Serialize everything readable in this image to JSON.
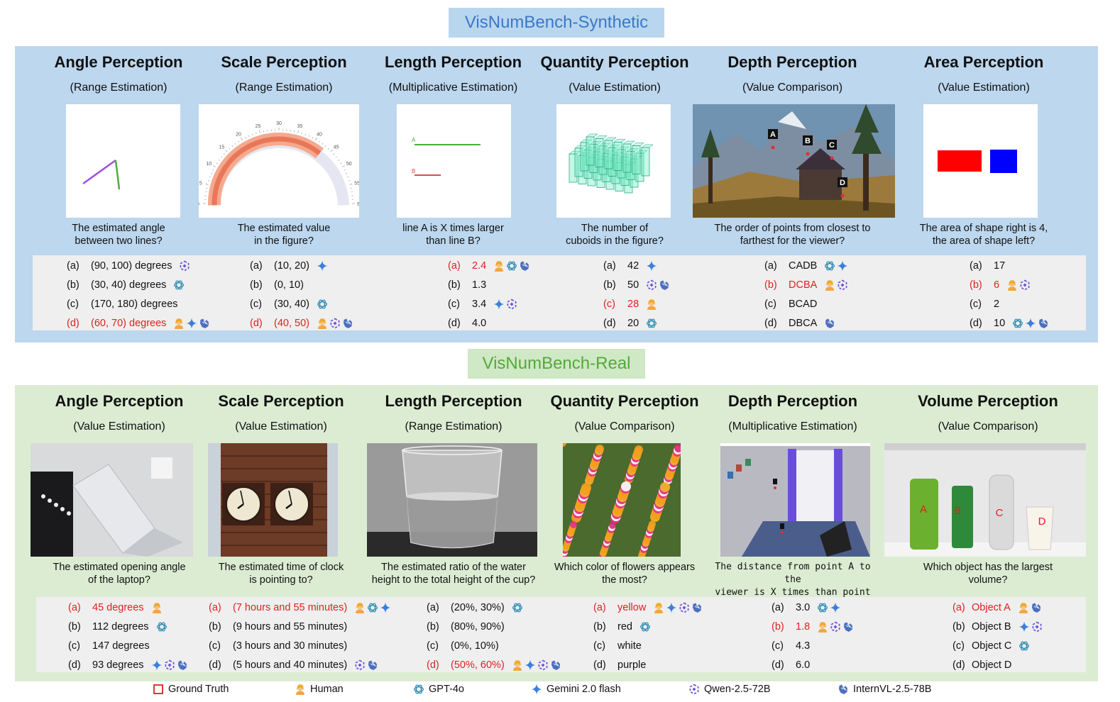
{
  "synthetic": {
    "banner": "VisNumBench-Synthetic",
    "columns": [
      {
        "title": "Angle Perception",
        "subtitle": "(Range Estimation)",
        "question": [
          "The estimated angle",
          "between two lines?"
        ],
        "options": [
          {
            "letter": "(a)",
            "text": "(90, 100) degrees",
            "models": [
              "qwen"
            ],
            "correct": false
          },
          {
            "letter": "(b)",
            "text": "(30, 40) degrees",
            "models": [
              "gpt"
            ],
            "correct": false
          },
          {
            "letter": "(c)",
            "text": "(170, 180) degrees",
            "models": [],
            "correct": false
          },
          {
            "letter": "(d)",
            "text": "(60, 70) degrees",
            "models": [
              "human",
              "gemini",
              "intern"
            ],
            "correct": true
          }
        ]
      },
      {
        "title": "Scale Perception",
        "subtitle": "(Range Estimation)",
        "question": [
          "The estimated value",
          "in the figure?"
        ],
        "options": [
          {
            "letter": "(a)",
            "text": "(10, 20)",
            "models": [
              "gemini"
            ],
            "correct": false
          },
          {
            "letter": "(b)",
            "text": "(0, 10)",
            "models": [],
            "correct": false
          },
          {
            "letter": "(c)",
            "text": "(30, 40)",
            "models": [
              "gpt"
            ],
            "correct": false
          },
          {
            "letter": "(d)",
            "text": "(40, 50)",
            "models": [
              "human",
              "qwen",
              "intern"
            ],
            "correct": true
          }
        ]
      },
      {
        "title": "Length Perception",
        "subtitle": "(Multiplicative Estimation)",
        "question": [
          "line A is X times larger",
          "than line B?"
        ],
        "options": [
          {
            "letter": "(a)",
            "text": "2.4",
            "models": [
              "human",
              "gpt",
              "intern"
            ],
            "correct": true
          },
          {
            "letter": "(b)",
            "text": "1.3",
            "models": [],
            "correct": false
          },
          {
            "letter": "(c)",
            "text": "3.4",
            "models": [
              "gemini",
              "qwen"
            ],
            "correct": false
          },
          {
            "letter": "(d)",
            "text": "4.0",
            "models": [],
            "correct": false
          }
        ]
      },
      {
        "title": "Quantity Perception",
        "subtitle": "(Value Estimation)",
        "question": [
          "The number of",
          "cuboids in the figure?"
        ],
        "options": [
          {
            "letter": "(a)",
            "text": "42",
            "models": [
              "gemini"
            ],
            "correct": false
          },
          {
            "letter": "(b)",
            "text": "50",
            "models": [
              "qwen",
              "intern"
            ],
            "correct": false
          },
          {
            "letter": "(c)",
            "text": "28",
            "models": [
              "human"
            ],
            "correct": true
          },
          {
            "letter": "(d)",
            "text": "20",
            "models": [
              "gpt"
            ],
            "correct": false
          }
        ]
      },
      {
        "title": "Depth Perception",
        "subtitle": "(Value Comparison)",
        "question": [
          "The order of points from closest to",
          "farthest for the viewer?"
        ],
        "options": [
          {
            "letter": "(a)",
            "text": "CADB",
            "models": [
              "gpt",
              "gemini"
            ],
            "correct": false
          },
          {
            "letter": "(b)",
            "text": "DCBA",
            "models": [
              "human",
              "qwen"
            ],
            "correct": true
          },
          {
            "letter": "(c)",
            "text": "BCAD",
            "models": [],
            "correct": false
          },
          {
            "letter": "(d)",
            "text": "DBCA",
            "models": [
              "intern"
            ],
            "correct": false
          }
        ]
      },
      {
        "title": "Area Perception",
        "subtitle": "(Value Estimation)",
        "question": [
          "The area of shape right is 4,",
          "the area of shape left?"
        ],
        "options": [
          {
            "letter": "(a)",
            "text": "17",
            "models": [],
            "correct": false
          },
          {
            "letter": "(b)",
            "text": "6",
            "models": [
              "human",
              "qwen"
            ],
            "correct": true
          },
          {
            "letter": "(c)",
            "text": "2",
            "models": [],
            "correct": false
          },
          {
            "letter": "(d)",
            "text": "10",
            "models": [
              "gpt",
              "gemini",
              "intern"
            ],
            "correct": false
          }
        ]
      }
    ],
    "images": {
      "scale_ticks": [
        "0",
        "5",
        "10",
        "15",
        "20",
        "25",
        "30",
        "35",
        "40",
        "45",
        "50",
        "55",
        "60"
      ],
      "length_labels": [
        "A",
        "B"
      ],
      "depth_points": [
        "A",
        "B",
        "C",
        "D"
      ]
    }
  },
  "real": {
    "banner": "VisNumBench-Real",
    "columns": [
      {
        "title": "Angle Perception",
        "subtitle": "(Value Estimation)",
        "question": [
          "The estimated opening angle",
          "of the laptop?"
        ],
        "options": [
          {
            "letter": "(a)",
            "text": "45 degrees",
            "models": [
              "human"
            ],
            "correct": true
          },
          {
            "letter": "(b)",
            "text": "112 degrees",
            "models": [
              "gpt"
            ],
            "correct": false
          },
          {
            "letter": "(c)",
            "text": "147 degrees",
            "models": [],
            "correct": false
          },
          {
            "letter": "(d)",
            "text": "93 degrees",
            "models": [
              "gemini",
              "qwen",
              "intern"
            ],
            "correct": false
          }
        ]
      },
      {
        "title": "Scale Perception",
        "subtitle": "(Value Estimation)",
        "question": [
          "The estimated time of clock",
          "is pointing to?"
        ],
        "options": [
          {
            "letter": "(a)",
            "text": "(7 hours and 55 minutes)",
            "models": [
              "human",
              "gpt",
              "gemini"
            ],
            "correct": true
          },
          {
            "letter": "(b)",
            "text": "(9 hours and 55 minutes)",
            "models": [],
            "correct": false
          },
          {
            "letter": "(c)",
            "text": "(3 hours and 30 minutes)",
            "models": [],
            "correct": false
          },
          {
            "letter": "(d)",
            "text": "(5 hours and 40 minutes)",
            "models": [
              "qwen",
              "intern"
            ],
            "correct": false
          }
        ]
      },
      {
        "title": "Length Perception",
        "subtitle": "(Range Estimation)",
        "question": [
          "The estimated ratio of the water",
          "height to the total height of the cup?"
        ],
        "options": [
          {
            "letter": "(a)",
            "text": "(20%, 30%)",
            "models": [
              "gpt"
            ],
            "correct": false
          },
          {
            "letter": "(b)",
            "text": "(80%, 90%)",
            "models": [],
            "correct": false
          },
          {
            "letter": "(c)",
            "text": "(0%, 10%)",
            "models": [],
            "correct": false
          },
          {
            "letter": "(d)",
            "text": "(50%, 60%)",
            "models": [
              "human",
              "gemini",
              "qwen",
              "intern"
            ],
            "correct": true
          }
        ]
      },
      {
        "title": "Quantity Perception",
        "subtitle": "(Value Comparison)",
        "question": [
          "Which color of flowers appears",
          "the most?"
        ],
        "options": [
          {
            "letter": "(a)",
            "text": "yellow",
            "models": [
              "human",
              "gemini",
              "qwen",
              "intern"
            ],
            "correct": true
          },
          {
            "letter": "(b)",
            "text": "red",
            "models": [
              "gpt"
            ],
            "correct": false
          },
          {
            "letter": "(c)",
            "text": "white",
            "models": [],
            "correct": false
          },
          {
            "letter": "(d)",
            "text": "purple",
            "models": [],
            "correct": false
          }
        ]
      },
      {
        "title": "Depth Perception",
        "subtitle": "(Multiplicative Estimation)",
        "question": [
          "The distance from point A to the",
          "viewer is X times than point B?"
        ],
        "options": [
          {
            "letter": "(a)",
            "text": "3.0",
            "models": [
              "gpt",
              "gemini"
            ],
            "correct": false
          },
          {
            "letter": "(b)",
            "text": "1.8",
            "models": [
              "human",
              "qwen",
              "intern"
            ],
            "correct": true
          },
          {
            "letter": "(c)",
            "text": "4.3",
            "models": [],
            "correct": false
          },
          {
            "letter": "(d)",
            "text": "6.0",
            "models": [],
            "correct": false
          }
        ]
      },
      {
        "title": "Volume Perception",
        "subtitle": "(Value Comparison)",
        "question": [
          "Which object has the largest",
          "volume?"
        ],
        "options": [
          {
            "letter": "(a)",
            "text": "Object A",
            "models": [
              "human",
              "intern"
            ],
            "correct": true
          },
          {
            "letter": "(b)",
            "text": "Object B",
            "models": [
              "gemini",
              "qwen"
            ],
            "correct": false
          },
          {
            "letter": "(c)",
            "text": "Object C",
            "models": [
              "gpt"
            ],
            "correct": false
          },
          {
            "letter": "(d)",
            "text": "Object D",
            "models": [],
            "correct": false
          }
        ]
      }
    ],
    "images": {
      "volume_labels": [
        "A",
        "B",
        "C",
        "D"
      ]
    }
  },
  "legend": [
    {
      "icon": "ground-truth",
      "label": "Ground Truth"
    },
    {
      "icon": "human",
      "label": "Human"
    },
    {
      "icon": "gpt",
      "label": "GPT-4o"
    },
    {
      "icon": "gemini",
      "label": "Gemini 2.0 flash"
    },
    {
      "icon": "qwen",
      "label": "Qwen-2.5-72B"
    },
    {
      "icon": "intern",
      "label": "InternVL-2.5-78B"
    }
  ],
  "colors": {
    "correct": "#e02020",
    "synthetic_bg": "#bcd7ee",
    "real_bg": "#dcecd3"
  }
}
